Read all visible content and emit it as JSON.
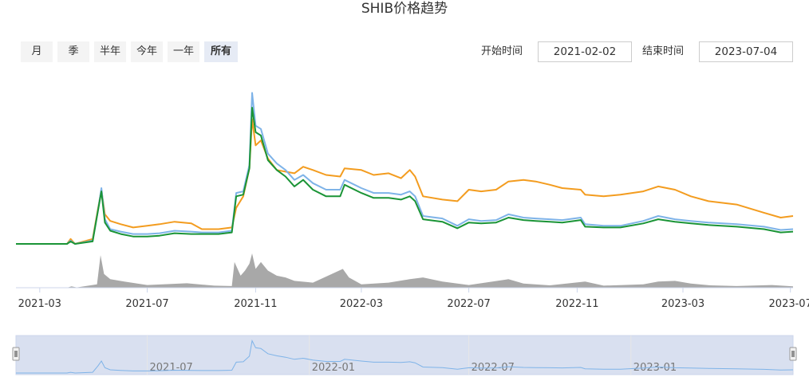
{
  "title": "SHIB价格趋势",
  "range_buttons": [
    "月",
    "季",
    "半年",
    "今年",
    "一年",
    "所有"
  ],
  "active_range": "所有",
  "start_label": "开始时间",
  "start_value": "2021-02-02",
  "end_label": "结束时间",
  "end_value": "2023-07-04",
  "colors": {
    "orange": "#f39c1f",
    "blue": "#7eb3e8",
    "green": "#1a9436",
    "volume": "#999999",
    "navigator": "#ccd6eb"
  },
  "chart_data": {
    "type": "line",
    "x_range": [
      "2021-02-02",
      "2023-07-04"
    ],
    "x_ticks": [
      "2021-03",
      "2021-07",
      "2021-11",
      "2022-03",
      "2022-07",
      "2022-11",
      "2023-03",
      "2023-07"
    ],
    "navigator_ticks": [
      "2021-07",
      "2022-01",
      "2022-07",
      "2023-01"
    ],
    "y_range": [
      0,
      10
    ],
    "series": [
      {
        "color_key": "orange",
        "points": [
          [
            "2021-02-02",
            0
          ],
          [
            "2021-04-01",
            0
          ],
          [
            "2021-04-05",
            0.3
          ],
          [
            "2021-04-10",
            0
          ],
          [
            "2021-04-30",
            0.3
          ],
          [
            "2021-05-06",
            2.1
          ],
          [
            "2021-05-10",
            3.3
          ],
          [
            "2021-05-14",
            1.8
          ],
          [
            "2021-05-20",
            1.4
          ],
          [
            "2021-06-01",
            1.2
          ],
          [
            "2021-06-15",
            1.0
          ],
          [
            "2021-07-01",
            1.1
          ],
          [
            "2021-07-15",
            1.2
          ],
          [
            "2021-08-01",
            1.35
          ],
          [
            "2021-08-20",
            1.25
          ],
          [
            "2021-09-01",
            0.9
          ],
          [
            "2021-09-20",
            0.9
          ],
          [
            "2021-10-05",
            1.0
          ],
          [
            "2021-10-10",
            2.2
          ],
          [
            "2021-10-18",
            2.9
          ],
          [
            "2021-10-25",
            4.6
          ],
          [
            "2021-10-28",
            7.6
          ],
          [
            "2021-11-01",
            6.0
          ],
          [
            "2021-11-07",
            6.3
          ],
          [
            "2021-11-15",
            5.2
          ],
          [
            "2021-11-25",
            4.5
          ],
          [
            "2021-12-05",
            4.4
          ],
          [
            "2021-12-15",
            4.3
          ],
          [
            "2021-12-25",
            4.7
          ],
          [
            "2022-01-05",
            4.5
          ],
          [
            "2022-01-20",
            4.2
          ],
          [
            "2022-02-05",
            4.1
          ],
          [
            "2022-02-10",
            4.6
          ],
          [
            "2022-03-01",
            4.5
          ],
          [
            "2022-03-15",
            4.2
          ],
          [
            "2022-04-01",
            4.3
          ],
          [
            "2022-04-15",
            4.0
          ],
          [
            "2022-04-25",
            4.5
          ],
          [
            "2022-05-01",
            4.1
          ],
          [
            "2022-05-10",
            2.9
          ],
          [
            "2022-06-01",
            2.7
          ],
          [
            "2022-06-18",
            2.6
          ],
          [
            "2022-07-01",
            3.3
          ],
          [
            "2022-07-15",
            3.2
          ],
          [
            "2022-08-01",
            3.3
          ],
          [
            "2022-08-15",
            3.8
          ],
          [
            "2022-09-01",
            3.9
          ],
          [
            "2022-09-15",
            3.8
          ],
          [
            "2022-10-01",
            3.6
          ],
          [
            "2022-10-15",
            3.4
          ],
          [
            "2022-11-05",
            3.3
          ],
          [
            "2022-11-10",
            3.0
          ],
          [
            "2022-12-01",
            2.9
          ],
          [
            "2022-12-20",
            3.0
          ],
          [
            "2023-01-15",
            3.2
          ],
          [
            "2023-02-01",
            3.5
          ],
          [
            "2023-02-20",
            3.3
          ],
          [
            "2023-03-10",
            2.9
          ],
          [
            "2023-03-30",
            2.6
          ],
          [
            "2023-05-01",
            2.4
          ],
          [
            "2023-06-01",
            1.9
          ],
          [
            "2023-06-20",
            1.6
          ],
          [
            "2023-07-04",
            1.7
          ]
        ]
      },
      {
        "color_key": "blue",
        "points": [
          [
            "2021-02-02",
            0
          ],
          [
            "2021-04-01",
            0
          ],
          [
            "2021-04-05",
            0.2
          ],
          [
            "2021-04-10",
            0
          ],
          [
            "2021-04-30",
            0.2
          ],
          [
            "2021-05-06",
            2.0
          ],
          [
            "2021-05-10",
            3.4
          ],
          [
            "2021-05-14",
            1.5
          ],
          [
            "2021-05-20",
            0.9
          ],
          [
            "2021-06-01",
            0.75
          ],
          [
            "2021-06-15",
            0.6
          ],
          [
            "2021-07-01",
            0.6
          ],
          [
            "2021-07-15",
            0.65
          ],
          [
            "2021-08-01",
            0.8
          ],
          [
            "2021-08-20",
            0.75
          ],
          [
            "2021-09-01",
            0.7
          ],
          [
            "2021-09-20",
            0.7
          ],
          [
            "2021-10-05",
            0.8
          ],
          [
            "2021-10-10",
            3.1
          ],
          [
            "2021-10-18",
            3.2
          ],
          [
            "2021-10-25",
            4.8
          ],
          [
            "2021-10-28",
            9.2
          ],
          [
            "2021-11-01",
            7.2
          ],
          [
            "2021-11-07",
            7.0
          ],
          [
            "2021-11-15",
            5.5
          ],
          [
            "2021-11-25",
            4.9
          ],
          [
            "2021-12-05",
            4.5
          ],
          [
            "2021-12-15",
            3.9
          ],
          [
            "2021-12-25",
            4.2
          ],
          [
            "2022-01-05",
            3.7
          ],
          [
            "2022-01-20",
            3.3
          ],
          [
            "2022-02-05",
            3.3
          ],
          [
            "2022-02-10",
            3.9
          ],
          [
            "2022-03-01",
            3.4
          ],
          [
            "2022-03-15",
            3.1
          ],
          [
            "2022-04-01",
            3.1
          ],
          [
            "2022-04-15",
            3.0
          ],
          [
            "2022-04-25",
            3.2
          ],
          [
            "2022-05-01",
            2.9
          ],
          [
            "2022-05-10",
            1.7
          ],
          [
            "2022-06-01",
            1.55
          ],
          [
            "2022-06-18",
            1.1
          ],
          [
            "2022-07-01",
            1.5
          ],
          [
            "2022-07-15",
            1.4
          ],
          [
            "2022-08-01",
            1.45
          ],
          [
            "2022-08-15",
            1.8
          ],
          [
            "2022-09-01",
            1.6
          ],
          [
            "2022-09-15",
            1.55
          ],
          [
            "2022-10-01",
            1.5
          ],
          [
            "2022-10-15",
            1.45
          ],
          [
            "2022-11-05",
            1.6
          ],
          [
            "2022-11-10",
            1.2
          ],
          [
            "2022-12-01",
            1.1
          ],
          [
            "2022-12-20",
            1.1
          ],
          [
            "2023-01-15",
            1.4
          ],
          [
            "2023-02-01",
            1.7
          ],
          [
            "2023-02-20",
            1.5
          ],
          [
            "2023-03-10",
            1.4
          ],
          [
            "2023-03-30",
            1.3
          ],
          [
            "2023-05-01",
            1.2
          ],
          [
            "2023-06-01",
            1.05
          ],
          [
            "2023-06-20",
            0.85
          ],
          [
            "2023-07-04",
            0.9
          ]
        ]
      },
      {
        "color_key": "green",
        "points": [
          [
            "2021-02-02",
            0
          ],
          [
            "2021-04-01",
            0
          ],
          [
            "2021-04-05",
            0.15
          ],
          [
            "2021-04-10",
            0
          ],
          [
            "2021-04-30",
            0.15
          ],
          [
            "2021-05-06",
            2.0
          ],
          [
            "2021-05-10",
            3.2
          ],
          [
            "2021-05-14",
            1.3
          ],
          [
            "2021-05-20",
            0.8
          ],
          [
            "2021-06-01",
            0.6
          ],
          [
            "2021-06-15",
            0.45
          ],
          [
            "2021-07-01",
            0.45
          ],
          [
            "2021-07-15",
            0.5
          ],
          [
            "2021-08-01",
            0.65
          ],
          [
            "2021-08-20",
            0.6
          ],
          [
            "2021-09-01",
            0.6
          ],
          [
            "2021-09-20",
            0.6
          ],
          [
            "2021-10-05",
            0.7
          ],
          [
            "2021-10-10",
            2.9
          ],
          [
            "2021-10-18",
            3.0
          ],
          [
            "2021-10-25",
            4.6
          ],
          [
            "2021-10-28",
            8.3
          ],
          [
            "2021-11-01",
            6.8
          ],
          [
            "2021-11-07",
            6.6
          ],
          [
            "2021-11-15",
            5.1
          ],
          [
            "2021-11-25",
            4.5
          ],
          [
            "2021-12-05",
            4.1
          ],
          [
            "2021-12-15",
            3.5
          ],
          [
            "2021-12-25",
            3.9
          ],
          [
            "2022-01-05",
            3.3
          ],
          [
            "2022-01-20",
            2.9
          ],
          [
            "2022-02-05",
            2.9
          ],
          [
            "2022-02-10",
            3.6
          ],
          [
            "2022-03-01",
            3.1
          ],
          [
            "2022-03-15",
            2.8
          ],
          [
            "2022-04-01",
            2.8
          ],
          [
            "2022-04-15",
            2.7
          ],
          [
            "2022-04-25",
            2.9
          ],
          [
            "2022-05-01",
            2.6
          ],
          [
            "2022-05-10",
            1.5
          ],
          [
            "2022-06-01",
            1.35
          ],
          [
            "2022-06-18",
            0.95
          ],
          [
            "2022-07-01",
            1.3
          ],
          [
            "2022-07-15",
            1.25
          ],
          [
            "2022-08-01",
            1.3
          ],
          [
            "2022-08-15",
            1.6
          ],
          [
            "2022-09-01",
            1.45
          ],
          [
            "2022-09-15",
            1.4
          ],
          [
            "2022-10-01",
            1.35
          ],
          [
            "2022-10-15",
            1.3
          ],
          [
            "2022-11-05",
            1.45
          ],
          [
            "2022-11-10",
            1.05
          ],
          [
            "2022-12-01",
            1.0
          ],
          [
            "2022-12-20",
            1.0
          ],
          [
            "2023-01-15",
            1.25
          ],
          [
            "2023-02-01",
            1.5
          ],
          [
            "2023-02-20",
            1.35
          ],
          [
            "2023-03-10",
            1.25
          ],
          [
            "2023-03-30",
            1.15
          ],
          [
            "2023-05-01",
            1.05
          ],
          [
            "2023-06-01",
            0.9
          ],
          [
            "2023-06-20",
            0.7
          ],
          [
            "2023-07-04",
            0.75
          ]
        ]
      }
    ],
    "volume_range": [
      0,
      10
    ],
    "volume": [
      [
        "2021-02-02",
        0
      ],
      [
        "2021-04-01",
        0
      ],
      [
        "2021-04-06",
        0.4
      ],
      [
        "2021-04-12",
        0.1
      ],
      [
        "2021-05-05",
        1
      ],
      [
        "2021-05-09",
        9.5
      ],
      [
        "2021-05-13",
        4.0
      ],
      [
        "2021-05-20",
        2.5
      ],
      [
        "2021-06-05",
        1.8
      ],
      [
        "2021-07-01",
        0.8
      ],
      [
        "2021-08-15",
        1.3
      ],
      [
        "2021-09-15",
        0.6
      ],
      [
        "2021-10-05",
        0.5
      ],
      [
        "2021-10-08",
        7.5
      ],
      [
        "2021-10-15",
        3.5
      ],
      [
        "2021-10-20",
        5.0
      ],
      [
        "2021-10-25",
        7.0
      ],
      [
        "2021-10-28",
        10
      ],
      [
        "2021-11-01",
        5.5
      ],
      [
        "2021-11-07",
        7.5
      ],
      [
        "2021-11-15",
        5.0
      ],
      [
        "2021-11-25",
        3.5
      ],
      [
        "2021-12-05",
        3.0
      ],
      [
        "2021-12-15",
        2.0
      ],
      [
        "2022-01-05",
        1.5
      ],
      [
        "2022-02-08",
        5.5
      ],
      [
        "2022-02-15",
        3.0
      ],
      [
        "2022-03-01",
        1.0
      ],
      [
        "2022-04-01",
        1.5
      ],
      [
        "2022-04-25",
        2.5
      ],
      [
        "2022-05-10",
        3.0
      ],
      [
        "2022-06-01",
        1.8
      ],
      [
        "2022-07-01",
        0.8
      ],
      [
        "2022-08-15",
        2.5
      ],
      [
        "2022-09-01",
        1.2
      ],
      [
        "2022-10-01",
        0.7
      ],
      [
        "2022-11-10",
        1.8
      ],
      [
        "2022-12-01",
        0.6
      ],
      [
        "2023-01-15",
        1.0
      ],
      [
        "2023-02-01",
        1.8
      ],
      [
        "2023-02-20",
        2.0
      ],
      [
        "2023-03-10",
        1.2
      ],
      [
        "2023-04-01",
        0.7
      ],
      [
        "2023-05-01",
        0.5
      ],
      [
        "2023-06-10",
        0.8
      ],
      [
        "2023-07-04",
        0.4
      ]
    ]
  }
}
